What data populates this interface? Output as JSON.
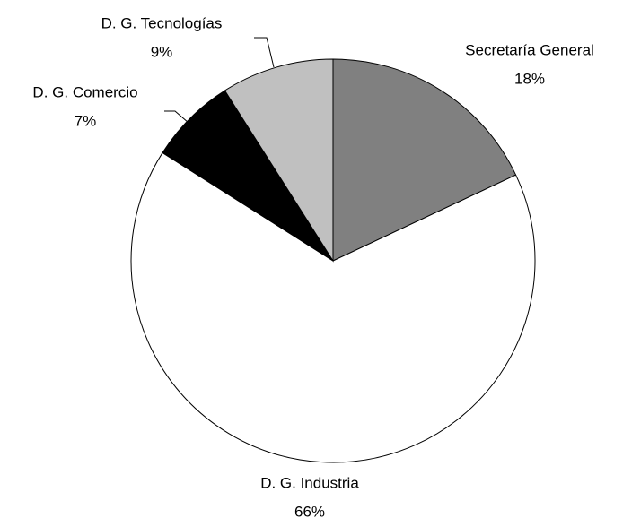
{
  "chart_data": {
    "type": "pie",
    "categories": [
      "Secretaría General",
      "D. G. Industria",
      "D. G. Comercio",
      "D. G. Tecnologías"
    ],
    "values": [
      18,
      66,
      7,
      9
    ],
    "value_labels": [
      "18%",
      "66%",
      "7%",
      "9%"
    ],
    "colors": [
      "#808080",
      "#ffffff",
      "#000000",
      "#c0c0c0"
    ]
  }
}
